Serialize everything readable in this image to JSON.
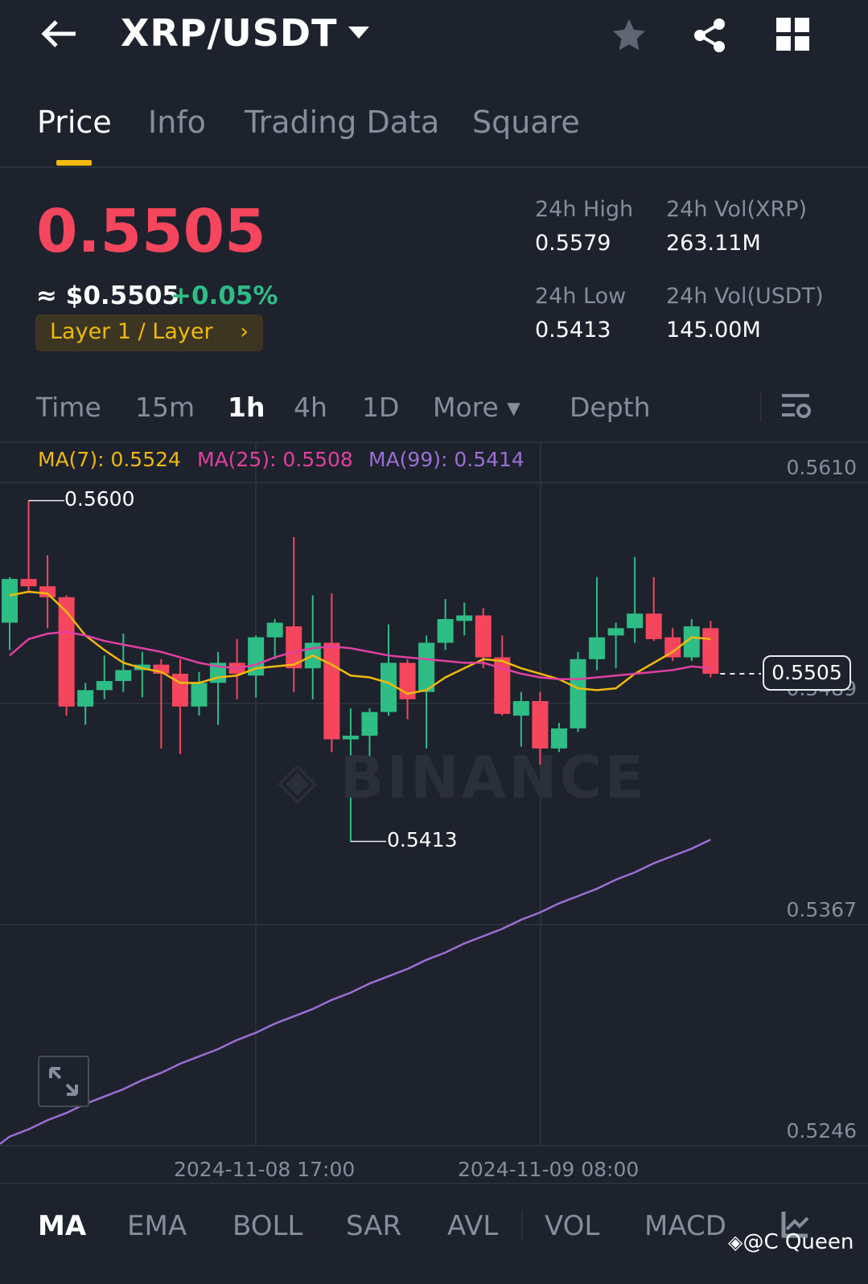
{
  "header": {
    "title": "XRP/USDT",
    "icons": [
      "back-arrow-icon",
      "dropdown-icon",
      "star-icon",
      "share-icon",
      "grid-icon"
    ]
  },
  "tabs": [
    {
      "label": "Price",
      "active": true
    },
    {
      "label": "Info"
    },
    {
      "label": "Trading Data"
    },
    {
      "label": "Square"
    }
  ],
  "ticker": {
    "last_price": "0.5505",
    "fiat_price": "≈ $0.5505",
    "change": "+0.05%",
    "tag": "Layer 1 / Layer",
    "tag_chevron": "›",
    "stats": [
      {
        "label": "24h High",
        "value": "0.5579"
      },
      {
        "label": "24h Vol(XRP)",
        "value": "263.11M"
      },
      {
        "label": "24h Low",
        "value": "0.5413"
      },
      {
        "label": "24h Vol(USDT)",
        "value": "145.00M"
      }
    ]
  },
  "intervals": [
    {
      "label": "Time"
    },
    {
      "label": "15m"
    },
    {
      "label": "1h",
      "active": true
    },
    {
      "label": "4h"
    },
    {
      "label": "1D"
    },
    {
      "label": "More ▾"
    },
    {
      "label": "Depth"
    }
  ],
  "ma_legend": [
    {
      "label": "MA(7): 0.5524",
      "color": "#f0b90b"
    },
    {
      "label": "MA(25): 0.5508",
      "color": "#e040a0"
    },
    {
      "label": "MA(99): 0.5414",
      "color": "#9b6fd6"
    }
  ],
  "colors": {
    "up": "#2ebd85",
    "down": "#f6465d",
    "accent": "#f0b90b",
    "background": "#1e222d"
  },
  "chart_data": {
    "type": "candlestick",
    "interval": "1h",
    "watermark": "BINANCE",
    "y_ticks": [
      "0.5610",
      "0.5489",
      "0.5367",
      "0.5246"
    ],
    "x_ticks": [
      "2024-11-08 17:00",
      "2024-11-09 08:00"
    ],
    "ylim": [
      0.5246,
      0.561
    ],
    "high_marker": "0.5600",
    "low_marker": "0.5413",
    "current_price": "0.5505",
    "grid": true,
    "ohlc": [
      [
        0.5533,
        0.5558,
        0.5518,
        0.5557
      ],
      [
        0.5557,
        0.56,
        0.555,
        0.5553
      ],
      [
        0.5553,
        0.557,
        0.553,
        0.5547
      ],
      [
        0.5547,
        0.5548,
        0.5482,
        0.5487
      ],
      [
        0.5487,
        0.55,
        0.5477,
        0.5496
      ],
      [
        0.5496,
        0.5515,
        0.5491,
        0.5501
      ],
      [
        0.5501,
        0.5527,
        0.5495,
        0.5507
      ],
      [
        0.5507,
        0.5517,
        0.5492,
        0.551
      ],
      [
        0.551,
        0.5513,
        0.5464,
        0.5505
      ],
      [
        0.5505,
        0.5513,
        0.5461,
        0.5487
      ],
      [
        0.5487,
        0.5506,
        0.5482,
        0.55
      ],
      [
        0.55,
        0.5517,
        0.5477,
        0.5511
      ],
      [
        0.5511,
        0.5524,
        0.5491,
        0.5505
      ],
      [
        0.5504,
        0.5526,
        0.5492,
        0.5525
      ],
      [
        0.5525,
        0.5535,
        0.5513,
        0.5533
      ],
      [
        0.5531,
        0.558,
        0.5495,
        0.5508
      ],
      [
        0.5508,
        0.5548,
        0.5491,
        0.5522
      ],
      [
        0.5522,
        0.5549,
        0.5462,
        0.5469
      ],
      [
        0.5469,
        0.5486,
        0.5413,
        0.5471
      ],
      [
        0.5471,
        0.5486,
        0.5458,
        0.5484
      ],
      [
        0.5484,
        0.5532,
        0.5482,
        0.5511
      ],
      [
        0.5511,
        0.5513,
        0.548,
        0.5491
      ],
      [
        0.5495,
        0.5526,
        0.5464,
        0.5522
      ],
      [
        0.5522,
        0.5546,
        0.5518,
        0.5535
      ],
      [
        0.5534,
        0.5544,
        0.5526,
        0.5537
      ],
      [
        0.5537,
        0.5541,
        0.5508,
        0.5514
      ],
      [
        0.5514,
        0.5526,
        0.5482,
        0.5483
      ],
      [
        0.5482,
        0.5495,
        0.5465,
        0.549
      ],
      [
        0.549,
        0.5495,
        0.5455,
        0.5464
      ],
      [
        0.5464,
        0.5478,
        0.5462,
        0.5475
      ],
      [
        0.5475,
        0.5517,
        0.5473,
        0.5513
      ],
      [
        0.5513,
        0.5558,
        0.5507,
        0.5525
      ],
      [
        0.5526,
        0.5533,
        0.5508,
        0.553
      ],
      [
        0.553,
        0.5569,
        0.5522,
        0.5538
      ],
      [
        0.5538,
        0.5558,
        0.5523,
        0.5524
      ],
      [
        0.5525,
        0.553,
        0.5512,
        0.5514
      ],
      [
        0.5514,
        0.5535,
        0.5512,
        0.5531
      ],
      [
        0.553,
        0.5534,
        0.5503,
        0.5505
      ]
    ],
    "series": [
      {
        "name": "MA(7)",
        "color": "#f0b90b",
        "values": [
          0.5548,
          0.555,
          0.5549,
          0.5539,
          0.5526,
          0.5518,
          0.5511,
          0.5508,
          0.5506,
          0.55,
          0.55,
          0.5503,
          0.5504,
          0.5508,
          0.5509,
          0.551,
          0.5515,
          0.551,
          0.5504,
          0.5503,
          0.55,
          0.5494,
          0.5496,
          0.5503,
          0.5508,
          0.5513,
          0.5512,
          0.5508,
          0.5505,
          0.5502,
          0.5497,
          0.5496,
          0.5497,
          0.5505,
          0.5511,
          0.5517,
          0.5525,
          0.5524
        ]
      },
      {
        "name": "MA(25)",
        "color": "#e040a0",
        "values": [
          0.5515,
          0.5524,
          0.5527,
          0.5528,
          0.5526,
          0.5523,
          0.5521,
          0.5519,
          0.5517,
          0.5514,
          0.5511,
          0.5509,
          0.5508,
          0.551,
          0.5514,
          0.5517,
          0.5519,
          0.552,
          0.5519,
          0.5517,
          0.5515,
          0.5514,
          0.5513,
          0.5512,
          0.5511,
          0.5511,
          0.5508,
          0.5505,
          0.5503,
          0.5502,
          0.5502,
          0.5503,
          0.5504,
          0.5505,
          0.5506,
          0.5507,
          0.5509,
          0.5508
        ]
      },
      {
        "name": "MA(99)",
        "color": "#9b6fd6",
        "values": [
          0.5251,
          0.5255,
          0.526,
          0.5264,
          0.5269,
          0.5273,
          0.5277,
          0.5282,
          0.5286,
          0.5291,
          0.5295,
          0.5299,
          0.5304,
          0.5308,
          0.5313,
          0.5317,
          0.5321,
          0.5326,
          0.533,
          0.5335,
          0.5339,
          0.5343,
          0.5348,
          0.5352,
          0.5357,
          0.5361,
          0.5365,
          0.537,
          0.5374,
          0.5379,
          0.5383,
          0.5387,
          0.5392,
          0.5396,
          0.5401,
          0.5405,
          0.5409,
          0.5414
        ]
      }
    ]
  },
  "indicators": [
    {
      "label": "MA",
      "active": true
    },
    {
      "label": "EMA"
    },
    {
      "label": "BOLL"
    },
    {
      "label": "SAR"
    },
    {
      "label": "AVL"
    },
    {
      "label": "VOL"
    },
    {
      "label": "MACD"
    }
  ],
  "watermark_user": "@C Queen"
}
